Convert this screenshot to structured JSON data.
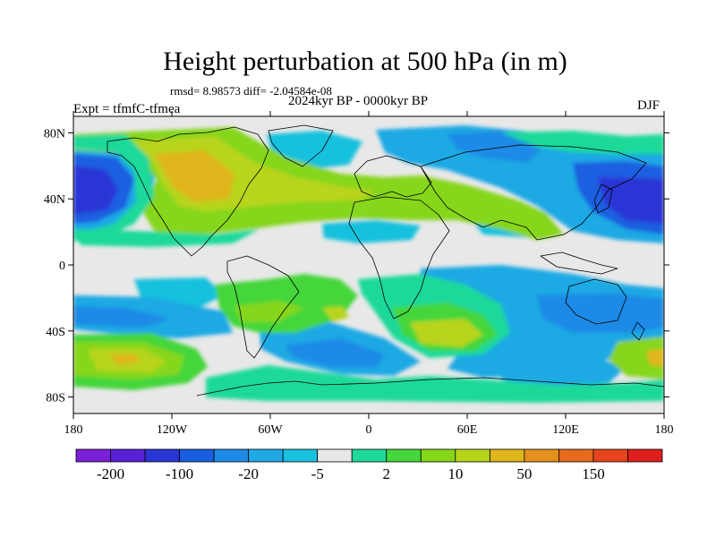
{
  "header": {
    "title": "Height perturbation at 500 hPa (in m)",
    "stats": "rmsd= 8.98573 diff= -2.04584e-08",
    "period": "2024kyr BP - 0000kyr BP",
    "experiment": "Expt = tfmfC-tfmea",
    "season": "DJF"
  },
  "map": {
    "projection": "cylindrical-equidistant",
    "lon_range": [
      -180,
      180
    ],
    "lat_range": [
      -90,
      90
    ],
    "lat_ticks": [
      "80N",
      "40N",
      "0",
      "40S",
      "80S"
    ],
    "lon_ticks": [
      "180",
      "120W",
      "60W",
      "0",
      "60E",
      "120E",
      "180"
    ],
    "background_color": "#e8e8e8"
  },
  "colorbar": {
    "colors": [
      "#7c1fd9",
      "#5a20d8",
      "#2a35d6",
      "#1a5ee0",
      "#1e8ae6",
      "#1fa9e4",
      "#19c1dd",
      "#e8e8e8",
      "#1fd99a",
      "#44d63a",
      "#86d61a",
      "#b8d41a",
      "#dfb61c",
      "#e58f1c",
      "#e66a1c",
      "#e5441c",
      "#e01e1e"
    ],
    "labels": [
      "-200",
      "-100",
      "-20",
      "-5",
      "2",
      "10",
      "50",
      "150"
    ]
  }
}
